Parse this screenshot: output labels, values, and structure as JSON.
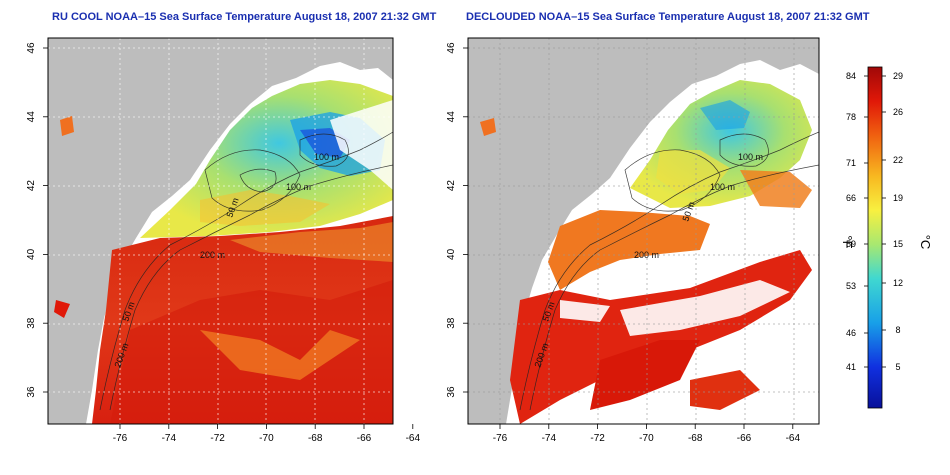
{
  "titles": {
    "left": "RU COOL NOAA–15 Sea Surface Temperature August 18, 2007 21:32 GMT",
    "right": "DECLOUDED NOAA–15 Sea Surface Temperature August 18, 2007 21:32 GMT"
  },
  "axes": {
    "x_ticks": [
      "-76",
      "-74",
      "-72",
      "-70",
      "-68",
      "-66",
      "-64"
    ],
    "y_ticks": [
      "36",
      "38",
      "40",
      "42",
      "44",
      "46"
    ]
  },
  "contour_labels": [
    "100 m",
    "100 m",
    "50 m",
    "200 m",
    "50 m",
    "200 m"
  ],
  "colorbar": {
    "f_label": "°F",
    "c_label": "°C",
    "f_ticks": [
      "84",
      "78",
      "71",
      "66",
      "59",
      "53",
      "46",
      "41"
    ],
    "c_ticks": [
      "29",
      "26",
      "22",
      "19",
      "15",
      "12",
      "8",
      "5"
    ]
  },
  "colors": {
    "land": "#bdbdbd",
    "title": "#1a2fb0",
    "cold": "#08109a",
    "warm": "#a00808"
  }
}
